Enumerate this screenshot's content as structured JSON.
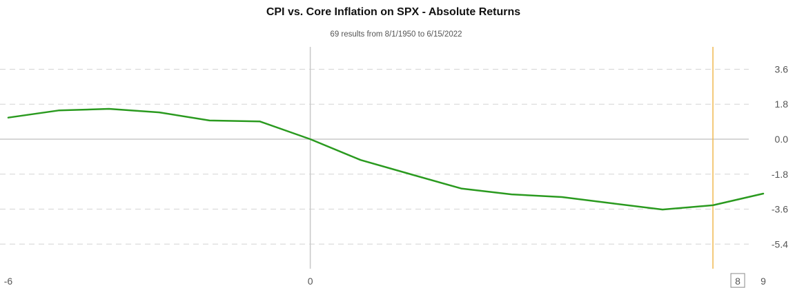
{
  "chart_data": {
    "type": "line",
    "title": "CPI vs. Core Inflation on SPX - Absolute Returns",
    "subtitle": "69 results from 8/1/1950 to 6/15/2022",
    "xlabel": "",
    "ylabel": "",
    "xlim": [
      -6,
      9
    ],
    "ylim": [
      -6.4,
      4.8
    ],
    "y_ticks": [
      3.6,
      1.8,
      0.0,
      -1.8,
      -3.6,
      -5.4
    ],
    "y_tick_labels": [
      "3.6",
      "1.8",
      "0.0",
      "-1.8",
      "-3.6",
      "-5.4"
    ],
    "x_ticks": [
      -6,
      0,
      9
    ],
    "x_tick_labels": [
      "-6",
      "0",
      "9"
    ],
    "highlight_x": 8,
    "highlight_label": "8",
    "grid": "horizontal dashed",
    "y_axis_side": "right",
    "series": [
      {
        "color": "#2a9a1f",
        "x": [
          -6,
          -5,
          -4,
          -3,
          -2,
          -1,
          0,
          1,
          2,
          3,
          4,
          5,
          6,
          7,
          8,
          9
        ],
        "y": [
          1.11,
          1.48,
          1.56,
          1.38,
          0.96,
          0.91,
          0.0,
          -1.07,
          -1.81,
          -2.54,
          -2.84,
          -2.98,
          -3.3,
          -3.62,
          -3.4,
          -2.8
        ]
      }
    ],
    "colors": {
      "line": "#2a9a1f",
      "zero_axis": "#c8c8c8",
      "grid": "#d4d4d4",
      "highlight": "#f0b850"
    }
  }
}
